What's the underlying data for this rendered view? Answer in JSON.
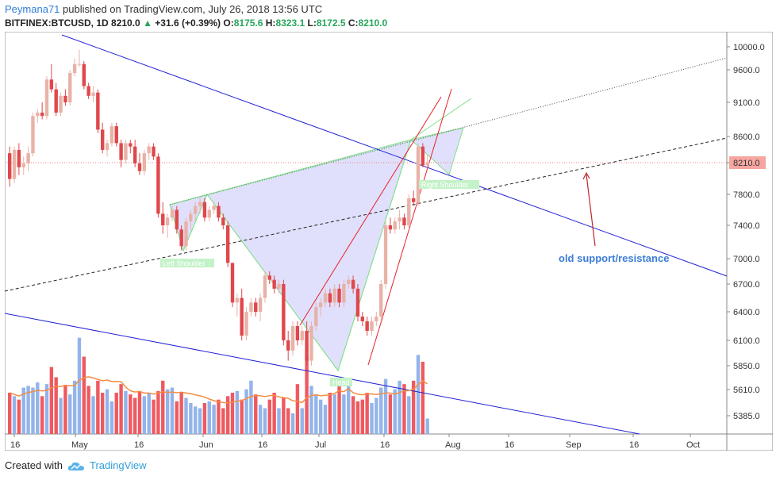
{
  "header": {
    "user": "Peymana71",
    "published_text": "published on TradingView.com, July 26, 2018 13:56 UTC",
    "symbol": "BITFINEX:BTCUSD, 1D",
    "last": "8210.0",
    "arrow": "▲",
    "change": "+31.6 (+0.39%)",
    "o_label": "O:",
    "o": "8175.6",
    "h_label": "H:",
    "h": "8323.1",
    "l_label": "L:",
    "l": "8172.5",
    "c_label": "C:",
    "c": "8210.0"
  },
  "footer": {
    "created_with": "Created with",
    "brand": "TradingView"
  },
  "colors": {
    "up": "#e8b2a8",
    "down": "#e0474c",
    "vol_up": "#93b4ea",
    "vol_down": "#ee5a60",
    "ma": "#f58d43",
    "trend_blue": "#2323d6",
    "pattern_fill": "#d5d6fb",
    "pattern_stroke": "#82e08c",
    "red_line": "#e8202a",
    "price_tag": "#f6a6a0"
  },
  "chart_data": {
    "type": "candlestick",
    "y_ticks": [
      5385.0,
      5610.0,
      5850.0,
      6100.0,
      6400.0,
      6700.0,
      7000.0,
      7400.0,
      7800.0,
      8210.0,
      8600.0,
      9100.0,
      9600.0,
      10000.0
    ],
    "y_tick_labels": [
      "5385.0",
      "5610.0",
      "5850.0",
      "6100.0",
      "6400.0",
      "6700.0",
      "7000.0",
      "7400.0",
      "7800.0",
      "8210.0",
      "8600.0",
      "9100.0",
      "9600.0",
      "10000.0"
    ],
    "x_ticks": [
      "16",
      "May",
      "16",
      "Jun",
      "16",
      "Jul",
      "16",
      "Aug",
      "16",
      "Sep",
      "16",
      "Oct"
    ],
    "last_price": "8210.0",
    "annotations": [
      "Left Shoulder",
      "Head",
      "Right Shoulder",
      "old support/resistance"
    ],
    "candles": [
      [
        8350,
        8450,
        7900,
        8000
      ],
      [
        8000,
        8450,
        7950,
        8400
      ],
      [
        8400,
        8500,
        8050,
        8150
      ],
      [
        8150,
        8300,
        8050,
        8200
      ],
      [
        8200,
        8450,
        8100,
        8350
      ],
      [
        8350,
        8950,
        8300,
        8900
      ],
      [
        8900,
        9000,
        8800,
        8950
      ],
      [
        8950,
        9100,
        8850,
        8900
      ],
      [
        8900,
        9500,
        8850,
        9450
      ],
      [
        9450,
        9700,
        9250,
        9300
      ],
      [
        9300,
        9400,
        8900,
        8950
      ],
      [
        8950,
        9250,
        8900,
        9200
      ],
      [
        9200,
        9300,
        9050,
        9100
      ],
      [
        9100,
        9600,
        9050,
        9550
      ],
      [
        9550,
        9800,
        9500,
        9700
      ],
      [
        9700,
        9950,
        9650,
        9700
      ],
      [
        9700,
        9750,
        9300,
        9350
      ],
      [
        9350,
        9400,
        9150,
        9200
      ],
      [
        9200,
        9350,
        9100,
        9250
      ],
      [
        9250,
        9300,
        8650,
        8700
      ],
      [
        8700,
        8800,
        8350,
        8400
      ],
      [
        8400,
        8550,
        8300,
        8500
      ],
      [
        8500,
        8800,
        8450,
        8750
      ],
      [
        8750,
        8800,
        8450,
        8500
      ],
      [
        8500,
        8550,
        8150,
        8250
      ],
      [
        8250,
        8550,
        8200,
        8500
      ],
      [
        8500,
        8550,
        8350,
        8450
      ],
      [
        8450,
        8550,
        8150,
        8200
      ],
      [
        8200,
        8350,
        8050,
        8100
      ],
      [
        8100,
        8400,
        8050,
        8350
      ],
      [
        8350,
        8500,
        8250,
        8450
      ],
      [
        8450,
        8500,
        8250,
        8300
      ],
      [
        8300,
        8350,
        7500,
        7550
      ],
      [
        7550,
        7700,
        7300,
        7400
      ],
      [
        7400,
        7550,
        7250,
        7500
      ],
      [
        7500,
        7650,
        7450,
        7600
      ],
      [
        7600,
        7650,
        7300,
        7350
      ],
      [
        7350,
        7400,
        7100,
        7150
      ],
      [
        7150,
        7500,
        7100,
        7450
      ],
      [
        7450,
        7600,
        7350,
        7550
      ],
      [
        7550,
        7700,
        7450,
        7650
      ],
      [
        7650,
        7750,
        7550,
        7700
      ],
      [
        7700,
        7750,
        7450,
        7500
      ],
      [
        7500,
        7650,
        7450,
        7600
      ],
      [
        7600,
        7700,
        7550,
        7650
      ],
      [
        7650,
        7700,
        7450,
        7500
      ],
      [
        7500,
        7550,
        7350,
        7400
      ],
      [
        7400,
        7450,
        6900,
        6950
      ],
      [
        6950,
        6950,
        6450,
        6500
      ],
      [
        6500,
        6600,
        6350,
        6550
      ],
      [
        6550,
        6650,
        6100,
        6150
      ],
      [
        6150,
        6450,
        6100,
        6400
      ],
      [
        6400,
        6550,
        6350,
        6500
      ],
      [
        6500,
        6550,
        6350,
        6400
      ],
      [
        6400,
        6600,
        6300,
        6550
      ],
      [
        6550,
        6850,
        6500,
        6800
      ],
      [
        6800,
        6850,
        6700,
        6750
      ],
      [
        6750,
        6800,
        6600,
        6650
      ],
      [
        6650,
        6750,
        6600,
        6700
      ],
      [
        6700,
        6750,
        6050,
        6100
      ],
      [
        6100,
        6200,
        5900,
        6000
      ],
      [
        6000,
        6300,
        5950,
        6250
      ],
      [
        6250,
        6300,
        6050,
        6100
      ],
      [
        6100,
        6250,
        6050,
        6200
      ],
      [
        6200,
        6300,
        5850,
        5900
      ],
      [
        5900,
        6300,
        5850,
        6250
      ],
      [
        6250,
        6500,
        6200,
        6450
      ],
      [
        6450,
        6550,
        6350,
        6500
      ],
      [
        6500,
        6650,
        6450,
        6600
      ],
      [
        6600,
        6650,
        6450,
        6500
      ],
      [
        6500,
        6700,
        6450,
        6650
      ],
      [
        6650,
        6700,
        6450,
        6500
      ],
      [
        6500,
        6750,
        6450,
        6700
      ],
      [
        6700,
        6800,
        6650,
        6750
      ],
      [
        6750,
        6800,
        6600,
        6650
      ],
      [
        6650,
        6700,
        6300,
        6350
      ],
      [
        6350,
        6400,
        6250,
        6300
      ],
      [
        6300,
        6350,
        6150,
        6200
      ],
      [
        6200,
        6350,
        6150,
        6300
      ],
      [
        6300,
        6400,
        6250,
        6350
      ],
      [
        6350,
        6750,
        6300,
        6700
      ],
      [
        6700,
        7450,
        6650,
        7400
      ],
      [
        7400,
        7500,
        7300,
        7350
      ],
      [
        7350,
        7500,
        7300,
        7450
      ],
      [
        7450,
        7600,
        7350,
        7500
      ],
      [
        7500,
        7550,
        7350,
        7400
      ],
      [
        7400,
        7800,
        7350,
        7750
      ],
      [
        7750,
        7850,
        7650,
        7700
      ],
      [
        7700,
        8500,
        7650,
        8450
      ],
      [
        8450,
        8500,
        8150,
        8175
      ],
      [
        8175.6,
        8323.1,
        8172.5,
        8210.0
      ]
    ],
    "volumes": [
      0.24,
      0.22,
      0.2,
      0.27,
      0.28,
      0.27,
      0.3,
      0.22,
      0.29,
      0.39,
      0.33,
      0.21,
      0.28,
      0.23,
      0.31,
      0.56,
      0.45,
      0.28,
      0.22,
      0.31,
      0.24,
      0.26,
      0.19,
      0.24,
      0.29,
      0.25,
      0.23,
      0.21,
      0.25,
      0.22,
      0.24,
      0.2,
      0.25,
      0.31,
      0.26,
      0.27,
      0.19,
      0.24,
      0.21,
      0.18,
      0.16,
      0.15,
      0.18,
      0.19,
      0.17,
      0.2,
      0.15,
      0.22,
      0.24,
      0.25,
      0.2,
      0.26,
      0.31,
      0.23,
      0.17,
      0.15,
      0.2,
      0.24,
      0.15,
      0.21,
      0.15,
      0.12,
      0.29,
      0.15,
      0.45,
      0.28,
      0.23,
      0.2,
      0.17,
      0.24,
      0.23,
      0.28,
      0.23,
      0.32,
      0.22,
      0.19,
      0.2,
      0.24,
      0.18,
      0.21,
      0.27,
      0.32,
      0.23,
      0.26,
      0.31,
      0.29,
      0.22,
      0.31,
      0.46,
      0.42,
      0.09
    ]
  }
}
